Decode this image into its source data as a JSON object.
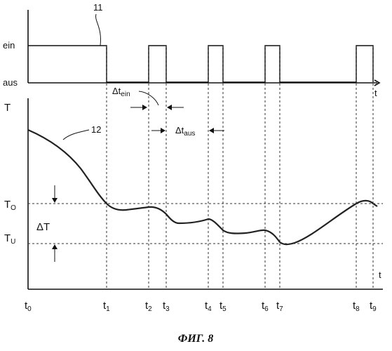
{
  "top_graph": {
    "reference_number": "11",
    "level_high_label": "ein",
    "level_low_label": "aus",
    "axis_label": "t"
  },
  "bottom_graph": {
    "y_axis_label": "T",
    "x_axis_label": "t",
    "curve_reference": "12",
    "upper_threshold": {
      "main": "T",
      "sub": "O"
    },
    "lower_threshold": {
      "main": "T",
      "sub": "U"
    },
    "delta_t_label": "ΔT",
    "delta_t_on": {
      "main": "Δt",
      "sub": "ein"
    },
    "delta_t_off": {
      "main": "Δt",
      "sub": "aus"
    }
  },
  "time_marks": [
    {
      "main": "t",
      "sub": "0"
    },
    {
      "main": "t",
      "sub": "1"
    },
    {
      "main": "t",
      "sub": "2"
    },
    {
      "main": "t",
      "sub": "3"
    },
    {
      "main": "t",
      "sub": "4"
    },
    {
      "main": "t",
      "sub": "5"
    },
    {
      "main": "t",
      "sub": "6"
    },
    {
      "main": "t",
      "sub": "7"
    },
    {
      "main": "t",
      "sub": "8"
    },
    {
      "main": "t",
      "sub": "9"
    }
  ],
  "caption": "ФИГ. 8"
}
